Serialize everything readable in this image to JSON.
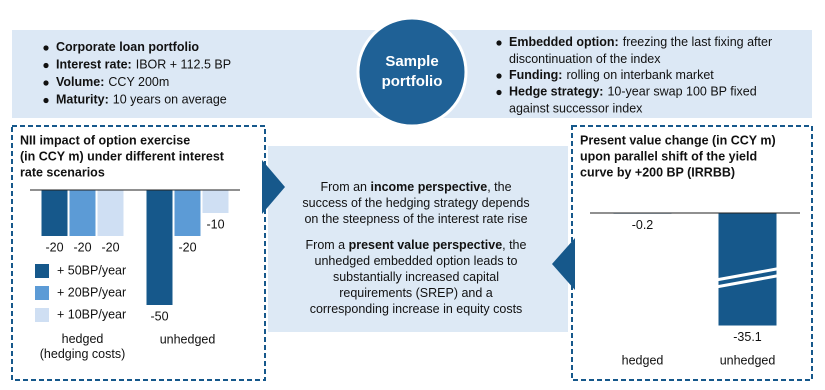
{
  "sample": {
    "title": [
      "Sample",
      "portfolio"
    ]
  },
  "left_bullets": [
    {
      "label": "Corporate loan portfolio"
    },
    {
      "label": "Interest rate:",
      "text": [
        "IBOR + 112.5 BP"
      ]
    },
    {
      "label": "Volume:",
      "text": [
        "CCY 200m"
      ]
    },
    {
      "label": "Maturity:",
      "text": [
        "10 years on average"
      ]
    }
  ],
  "right_bullets": [
    {
      "label": "Embedded option:",
      "text": [
        "freezing the last fixing after",
        "discontinuation of the index"
      ]
    },
    {
      "label": "Funding:",
      "text": [
        "rolling on interbank market"
      ]
    },
    {
      "label": "Hedge strategy:",
      "text": [
        "10-year swap 100 BP fixed",
        "against successor index"
      ]
    }
  ],
  "middle": [
    {
      "lines": [
        [
          {
            "text": "From an "
          },
          {
            "text": "income perspective",
            "bold": true
          },
          {
            "text": ", the"
          }
        ],
        [
          {
            "text": "success of the hedging strategy depends"
          }
        ],
        [
          {
            "text": "on the steepness of the interest rate rise"
          }
        ]
      ]
    },
    {
      "lines": [
        [
          {
            "text": "From a "
          },
          {
            "text": "present value perspective",
            "bold": true
          },
          {
            "text": ", the"
          }
        ],
        [
          {
            "text": "unhedged embedded option leads to"
          }
        ],
        [
          {
            "text": "substantially increased capital"
          }
        ],
        [
          {
            "text": "requirements (SREP) and a"
          }
        ],
        [
          {
            "text": "corresponding increase in equity costs"
          }
        ]
      ]
    }
  ],
  "chart_data": [
    {
      "type": "bar",
      "title": [
        "NII impact of option exercise",
        "(in CCY m) under different interest",
        "rate scenarios"
      ],
      "categories": [
        "hedged\n(hedging costs)",
        "unhedged"
      ],
      "series": [
        {
          "name": "+ 50BP/year",
          "color": "#16588b",
          "values": [
            -20,
            -50
          ]
        },
        {
          "name": "+ 20BP/year",
          "color": "#5c9bd6",
          "values": [
            -20,
            -20
          ]
        },
        {
          "name": "+ 10BP/year",
          "color": "#cfdff3",
          "values": [
            -20,
            -10
          ]
        }
      ],
      "ylim": [
        -50,
        0
      ]
    },
    {
      "type": "bar",
      "title": [
        "Present value change (in CCY m)",
        "upon parallel shift of the yield",
        "curve by +200 BP (IRRBB)"
      ],
      "categories": [
        "hedged",
        "unhedged"
      ],
      "values": [
        -0.2,
        -35.1
      ],
      "color": "#16588b",
      "ylim": [
        -36.5,
        0
      ]
    }
  ]
}
